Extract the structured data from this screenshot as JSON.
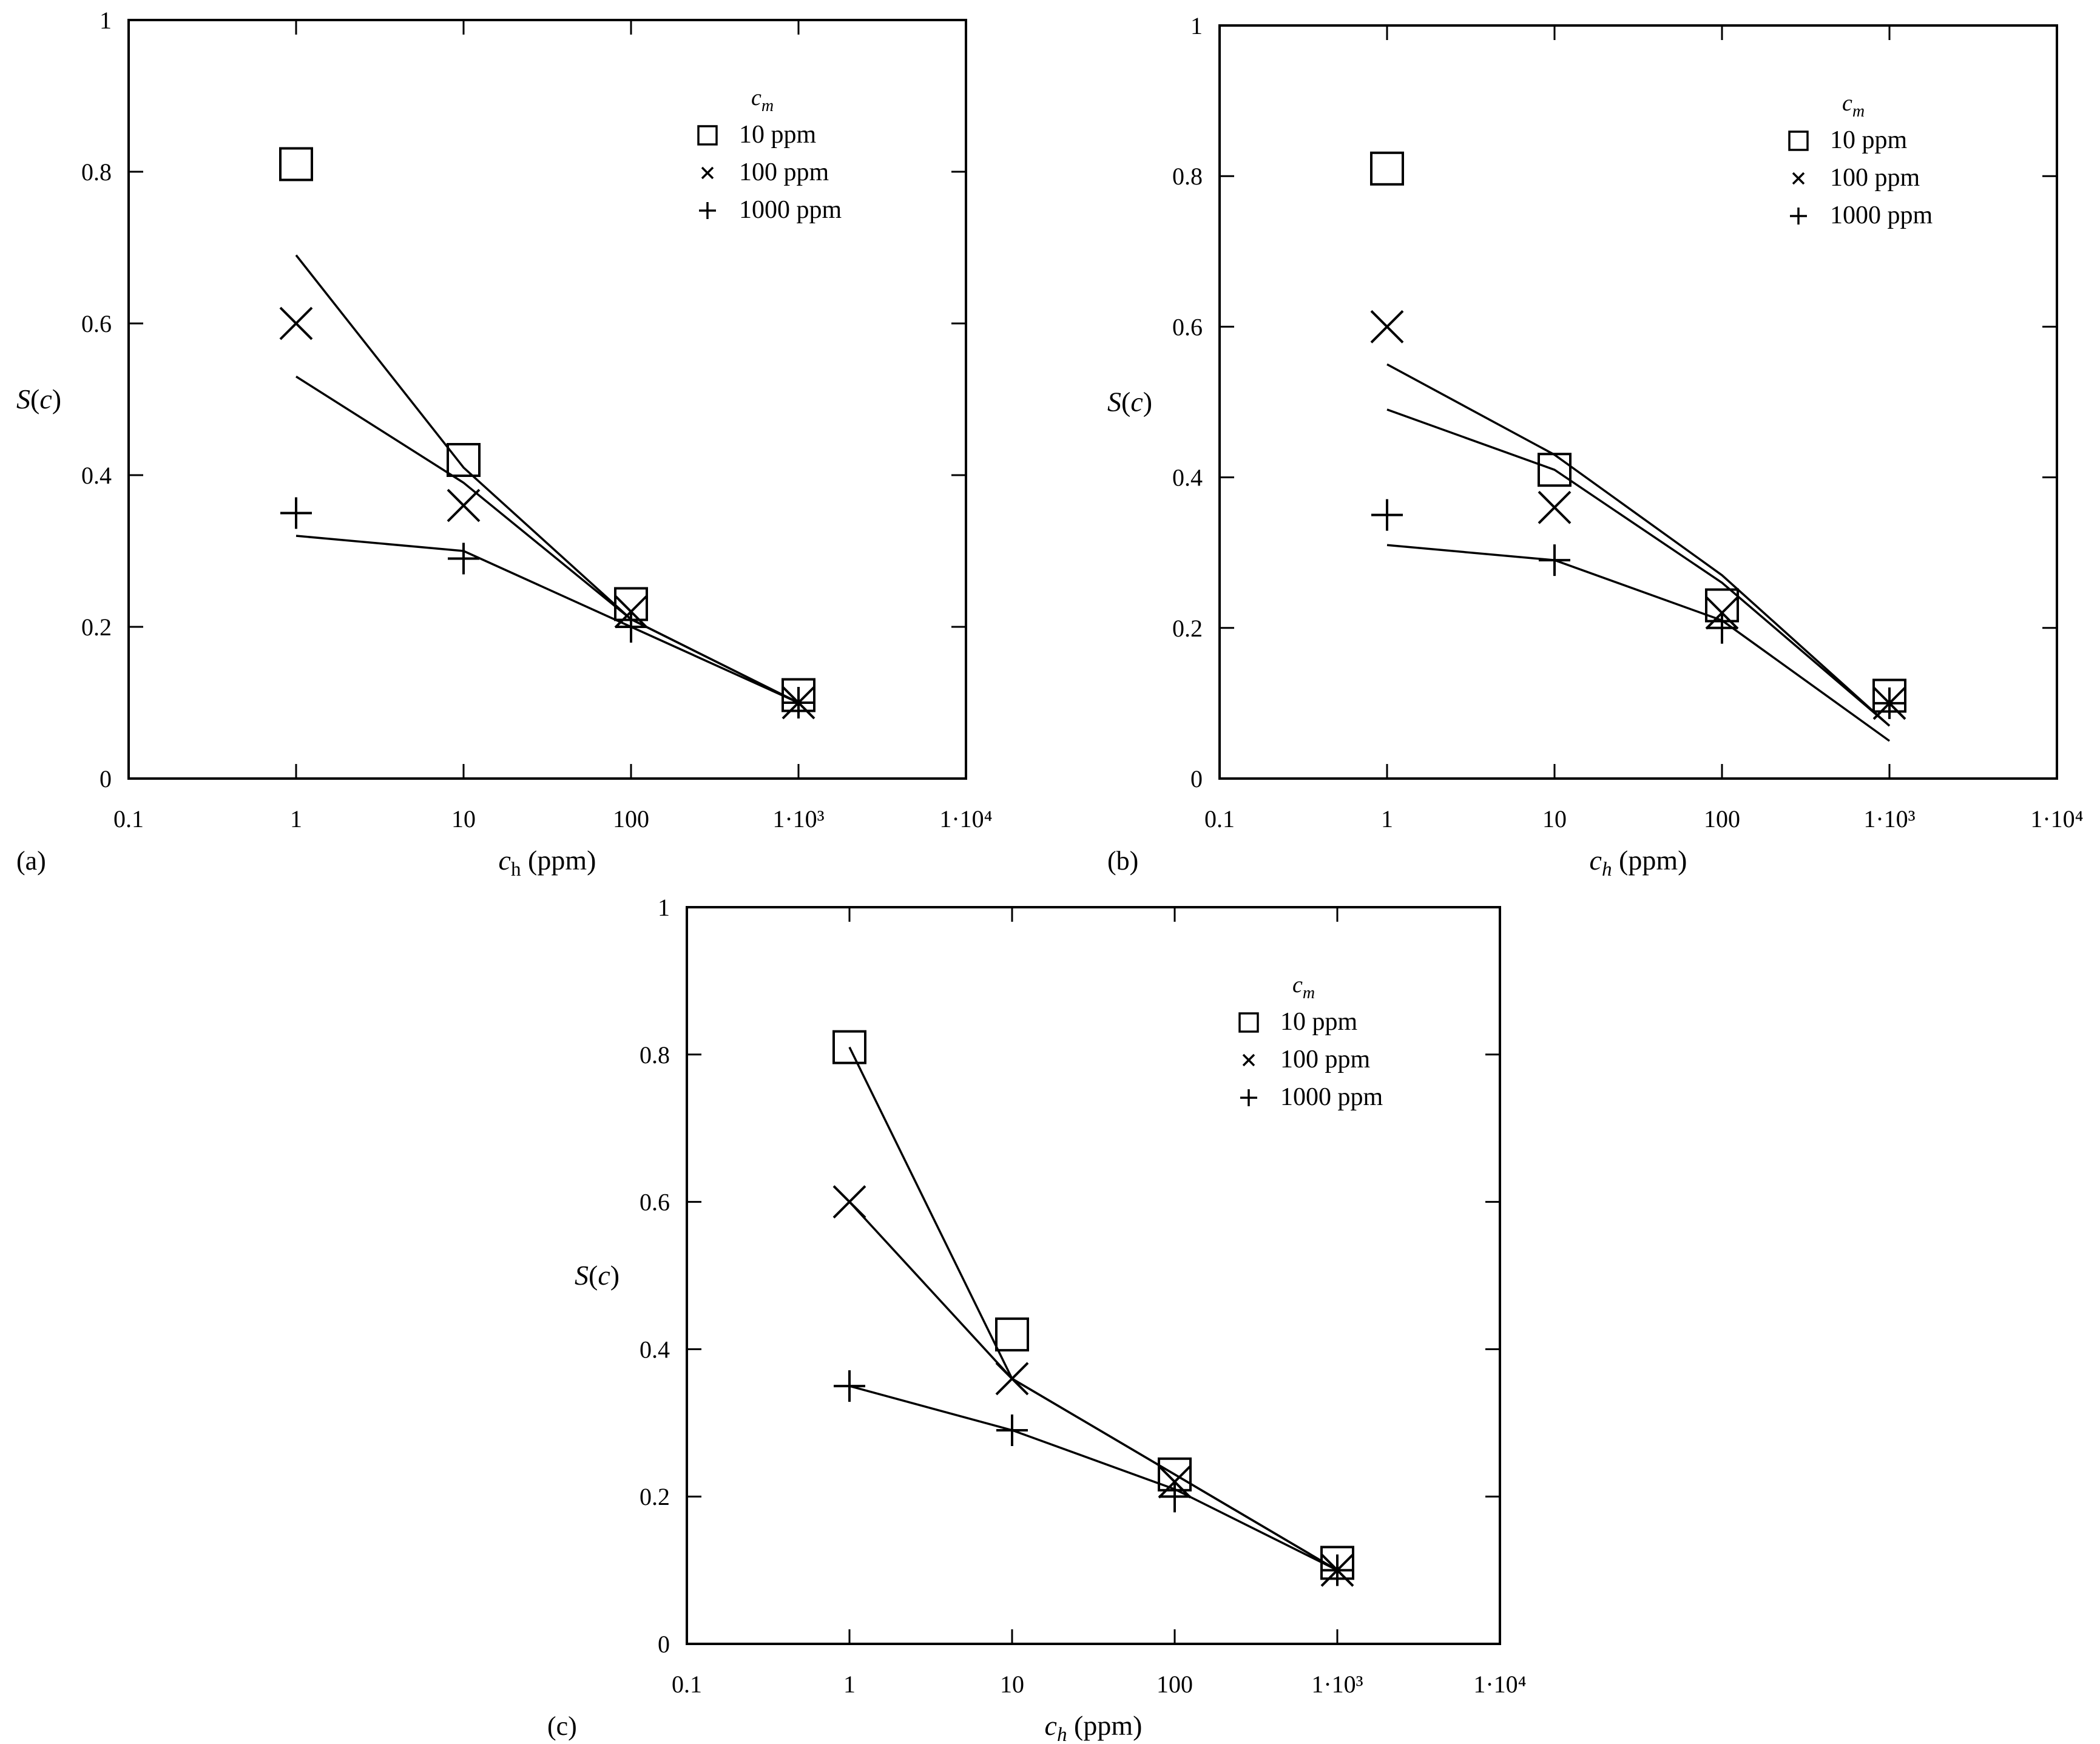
{
  "x_tick_labels": [
    "0.1",
    "1",
    "10",
    "100",
    "1·10³",
    "1·10⁴"
  ],
  "y_tick_labels": [
    "0",
    "0.2",
    "0.4",
    "0.6",
    "0.8",
    "1"
  ],
  "legend_title": "cm",
  "legend_entries": [
    {
      "symbol": "square",
      "label": "10 ppm"
    },
    {
      "symbol": "cross",
      "label": "100 ppm"
    },
    {
      "symbol": "plus",
      "label": "1000 ppm"
    }
  ],
  "chart_data": [
    {
      "type": "scatter",
      "panel_label": "(a)",
      "xlabel": "ch (ppm)",
      "ylabel": "S(c)",
      "xscale": "log",
      "xlim": [
        0.1,
        10000
      ],
      "ylim": [
        0,
        1
      ],
      "legend_position": "top-right",
      "series": [
        {
          "name": "10 ppm",
          "marker": "square",
          "x": [
            1,
            10,
            100,
            1000
          ],
          "values": [
            0.81,
            0.42,
            0.23,
            0.11
          ],
          "fit_x": [
            1,
            10,
            100,
            1000
          ],
          "fit_y": [
            0.69,
            0.41,
            0.21,
            0.1
          ]
        },
        {
          "name": "100 ppm",
          "marker": "cross",
          "x": [
            1,
            10,
            100,
            1000
          ],
          "values": [
            0.6,
            0.36,
            0.22,
            0.1
          ],
          "fit_x": [
            1,
            10,
            100,
            1000
          ],
          "fit_y": [
            0.53,
            0.39,
            0.21,
            0.1
          ]
        },
        {
          "name": "1000 ppm",
          "marker": "plus",
          "x": [
            1,
            10,
            100,
            1000
          ],
          "values": [
            0.35,
            0.29,
            0.2,
            0.1
          ],
          "fit_x": [
            1,
            10,
            100,
            1000
          ],
          "fit_y": [
            0.32,
            0.3,
            0.2,
            0.1
          ]
        }
      ]
    },
    {
      "type": "scatter",
      "panel_label": "(b)",
      "xlabel": "ch (ppm)",
      "ylabel": "S(c)",
      "xscale": "log",
      "xlim": [
        0.1,
        10000
      ],
      "ylim": [
        0,
        1
      ],
      "legend_position": "top-right",
      "series": [
        {
          "name": "10 ppm",
          "marker": "square",
          "x": [
            1,
            10,
            100,
            1000
          ],
          "values": [
            0.81,
            0.41,
            0.23,
            0.11
          ],
          "fit_x": [
            1,
            10,
            100,
            1000
          ],
          "fit_y": [
            0.55,
            0.43,
            0.27,
            0.07
          ]
        },
        {
          "name": "100 ppm",
          "marker": "cross",
          "x": [
            1,
            10,
            100,
            1000
          ],
          "values": [
            0.6,
            0.36,
            0.22,
            0.1
          ],
          "fit_x": [
            1,
            10,
            100,
            1000
          ],
          "fit_y": [
            0.49,
            0.41,
            0.26,
            0.07
          ]
        },
        {
          "name": "1000 ppm",
          "marker": "plus",
          "x": [
            1,
            10,
            100,
            1000
          ],
          "values": [
            0.35,
            0.29,
            0.2,
            0.1
          ],
          "fit_x": [
            1,
            10,
            100,
            1000
          ],
          "fit_y": [
            0.31,
            0.29,
            0.21,
            0.05
          ]
        }
      ]
    },
    {
      "type": "scatter",
      "panel_label": "(c)",
      "xlabel": "ch (ppm)",
      "ylabel": "S(c)",
      "xscale": "log",
      "xlim": [
        0.1,
        10000
      ],
      "ylim": [
        0,
        1
      ],
      "legend_position": "top-right",
      "series": [
        {
          "name": "10 ppm",
          "marker": "square",
          "x": [
            1,
            10,
            100,
            1000
          ],
          "values": [
            0.81,
            0.42,
            0.23,
            0.11
          ],
          "fit_x": [
            1,
            10,
            100,
            1000
          ],
          "fit_y": [
            0.81,
            0.36,
            0.23,
            0.1
          ]
        },
        {
          "name": "100 ppm",
          "marker": "cross",
          "x": [
            1,
            10,
            100,
            1000
          ],
          "values": [
            0.6,
            0.36,
            0.22,
            0.1
          ],
          "fit_x": [
            1,
            10,
            100,
            1000
          ],
          "fit_y": [
            0.6,
            0.36,
            0.23,
            0.1
          ]
        },
        {
          "name": "1000 ppm",
          "marker": "plus",
          "x": [
            1,
            10,
            100,
            1000
          ],
          "values": [
            0.35,
            0.29,
            0.2,
            0.1
          ],
          "fit_x": [
            1,
            10,
            100,
            1000
          ],
          "fit_y": [
            0.35,
            0.29,
            0.21,
            0.1
          ]
        }
      ]
    }
  ]
}
